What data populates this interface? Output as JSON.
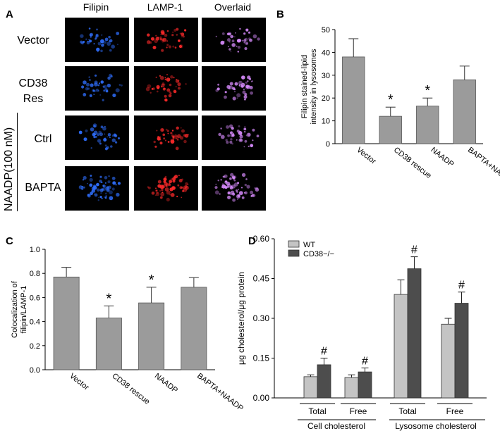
{
  "panelA": {
    "letter": "A",
    "columns": [
      "Filipin",
      "LAMP-1",
      "Overlaid"
    ],
    "rows": [
      {
        "label_lines": [
          "Vector"
        ]
      },
      {
        "label_lines": [
          "CD38",
          "Res"
        ]
      },
      {
        "label_lines": [
          "Ctrl"
        ]
      },
      {
        "label_lines": [
          "BAPTA"
        ]
      }
    ],
    "group_label": "NAADP(100 nM)",
    "colors": {
      "filipin": "#2f6fff",
      "lamp": "#ff2a2a",
      "overlay": "#d98cff"
    }
  },
  "chart_data": [
    {
      "panel": "B",
      "type": "bar",
      "categories": [
        "Vector",
        "CD38 rescue",
        "NAADP",
        "BAPTA+NAADP"
      ],
      "values": [
        38,
        12,
        16.5,
        28
      ],
      "errors": [
        8,
        4,
        3.5,
        6
      ],
      "significance": [
        "",
        "*",
        "*",
        ""
      ],
      "ylabel_lines": [
        "Filipin stained-lipid",
        "intensity in lysosomes"
      ],
      "ylim": [
        0,
        50
      ],
      "yticks": [
        0,
        10,
        20,
        30,
        40,
        50
      ],
      "bar_color": "#9b9b9b"
    },
    {
      "panel": "C",
      "type": "bar",
      "categories": [
        "Vector",
        "CD38 rescue",
        "NAADP",
        "BAPTA+NAADP"
      ],
      "values": [
        0.77,
        0.43,
        0.555,
        0.685
      ],
      "errors": [
        0.08,
        0.1,
        0.13,
        0.08
      ],
      "significance": [
        "",
        "*",
        "*",
        ""
      ],
      "ylabel_lines": [
        "Colocalization of",
        "filipin/LAMP-1"
      ],
      "ylim": [
        0,
        1.0
      ],
      "yticks": [
        "0.0",
        "0.2",
        "0.4",
        "0.6",
        "0.8",
        "1.0"
      ],
      "bar_color": "#9b9b9b"
    },
    {
      "panel": "D",
      "type": "bar",
      "categories": [
        "Total",
        "Free",
        "Total",
        "Free"
      ],
      "groups": [
        "Cell  cholesterol",
        "Lysosome cholesterol"
      ],
      "series": [
        {
          "name": "WT",
          "values": [
            0.08,
            0.077,
            0.39,
            0.278
          ],
          "errors": [
            0.007,
            0.01,
            0.055,
            0.022
          ],
          "color": "#c4c4c4"
        },
        {
          "name": "CD38−/−",
          "values": [
            0.125,
            0.098,
            0.487,
            0.357
          ],
          "errors": [
            0.025,
            0.015,
            0.045,
            0.042
          ],
          "color": "#4d4d4d"
        }
      ],
      "significance": [
        "#",
        "#",
        "#",
        "#"
      ],
      "ylabel": "μg cholesterol/μg protein",
      "ylim": [
        0,
        0.6
      ],
      "yticks": [
        "0.00",
        "0.15",
        "0.30",
        "0.45",
        "0.60"
      ],
      "legend_position": "top-left"
    }
  ]
}
